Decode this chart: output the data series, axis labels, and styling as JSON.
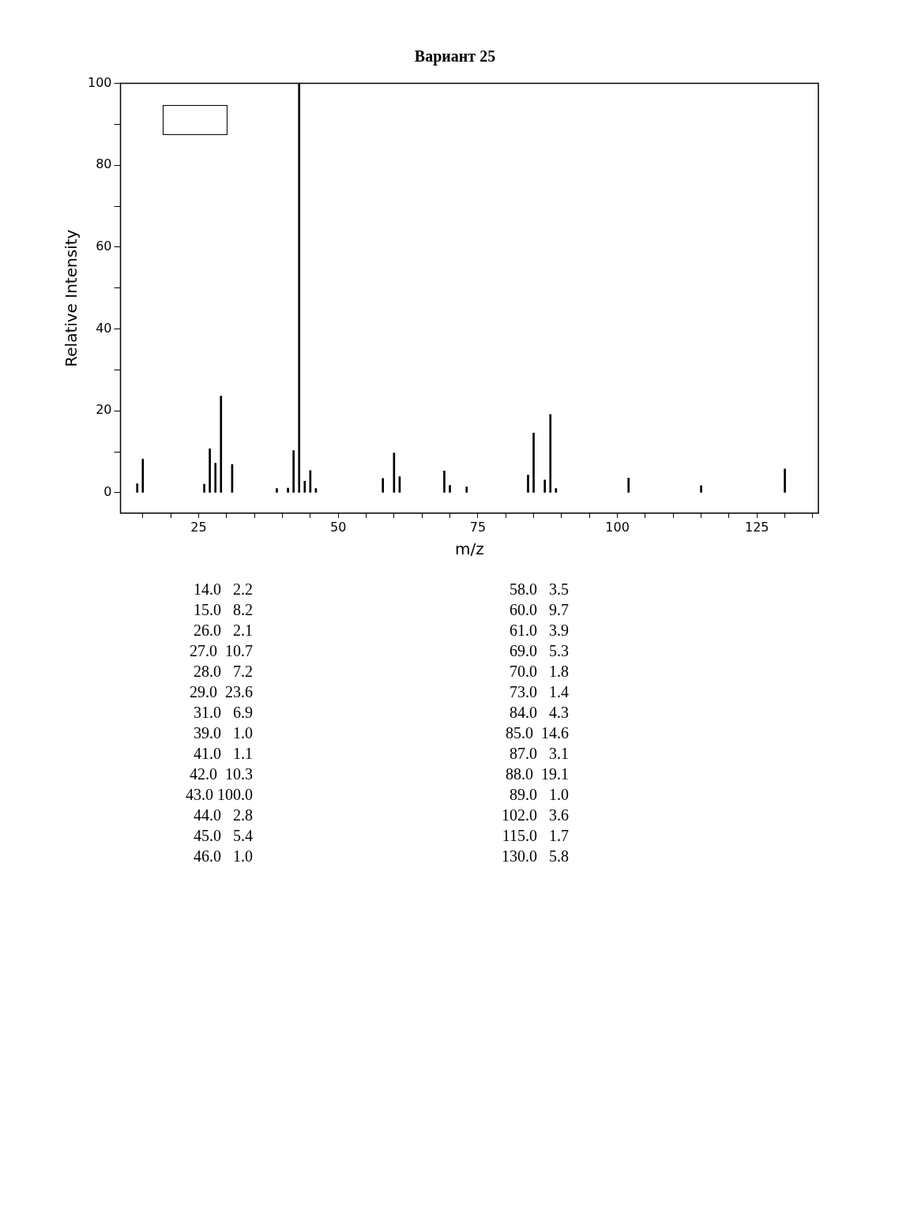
{
  "chart_data": {
    "type": "bar",
    "title": "Вариант 25",
    "xlabel": "m/z",
    "ylabel": "Relative Intensity",
    "x": [
      14,
      15,
      26,
      27,
      28,
      29,
      31,
      39,
      41,
      42,
      43,
      44,
      45,
      46,
      58,
      60,
      61,
      69,
      70,
      73,
      84,
      85,
      87,
      88,
      89,
      102,
      115,
      130
    ],
    "values": [
      2.2,
      8.2,
      2.1,
      10.7,
      7.2,
      23.6,
      6.9,
      1.0,
      1.1,
      10.3,
      100.0,
      2.8,
      5.4,
      1.0,
      3.5,
      9.7,
      3.9,
      5.3,
      1.8,
      1.4,
      4.3,
      14.6,
      3.1,
      19.1,
      1.0,
      3.6,
      1.7,
      5.8
    ],
    "annotations": [
      "14.0   2.2",
      "15.0   8.2",
      "26.0   2.1",
      "27.0  10.7",
      "28.0   7.2",
      "29.0  23.6",
      "31.0   6.9",
      "39.0   1.0",
      "41.0   1.1",
      "42.0  10.3",
      "43.0 100.0",
      "44.0   2.8",
      "45.0   5.4",
      "46.0   1.0",
      "58.0   3.5",
      "60.0   9.7",
      "61.0   3.9",
      "69.0   5.3",
      "70.0   1.8",
      "73.0   1.4",
      "84.0   4.3",
      "85.0  14.6",
      "87.0   3.1",
      "88.0  19.1",
      "89.0   1.0",
      "102.0   3.6",
      "115.0   1.7",
      "130.0   5.8"
    ],
    "color": "#000000",
    "xlim": [
      11,
      136
    ],
    "xticks": [
      {
        "value": 15,
        "label": null
      },
      {
        "value": 20,
        "label": null
      },
      25,
      {
        "value": 30,
        "label": null
      },
      {
        "value": 35,
        "label": null
      },
      {
        "value": 40,
        "label": null
      },
      {
        "value": 45,
        "label": null
      },
      50,
      {
        "value": 55,
        "label": null
      },
      {
        "value": 60,
        "label": null
      },
      {
        "value": 65,
        "label": null
      },
      {
        "value": 70,
        "label": null
      },
      75,
      {
        "value": 80,
        "label": null
      },
      {
        "value": 85,
        "label": null
      },
      {
        "value": 90,
        "label": null
      },
      {
        "value": 95,
        "label": null
      },
      100,
      {
        "value": 105,
        "label": null
      },
      {
        "value": 110,
        "label": null
      },
      {
        "value": 115,
        "label": null
      },
      {
        "value": 120,
        "label": null
      },
      125,
      {
        "value": 130,
        "label": null
      },
      {
        "value": 135,
        "label": null
      }
    ],
    "ylim": [
      -5,
      100
    ],
    "yticks": [
      0,
      {
        "value": 10,
        "label": null
      },
      20,
      {
        "value": 30,
        "label": null
      },
      40,
      {
        "value": 50,
        "label": null
      },
      60,
      {
        "value": 70,
        "label": null
      },
      80,
      {
        "value": 90,
        "label": null
      },
      100
    ],
    "grid": false,
    "legend": false
  }
}
